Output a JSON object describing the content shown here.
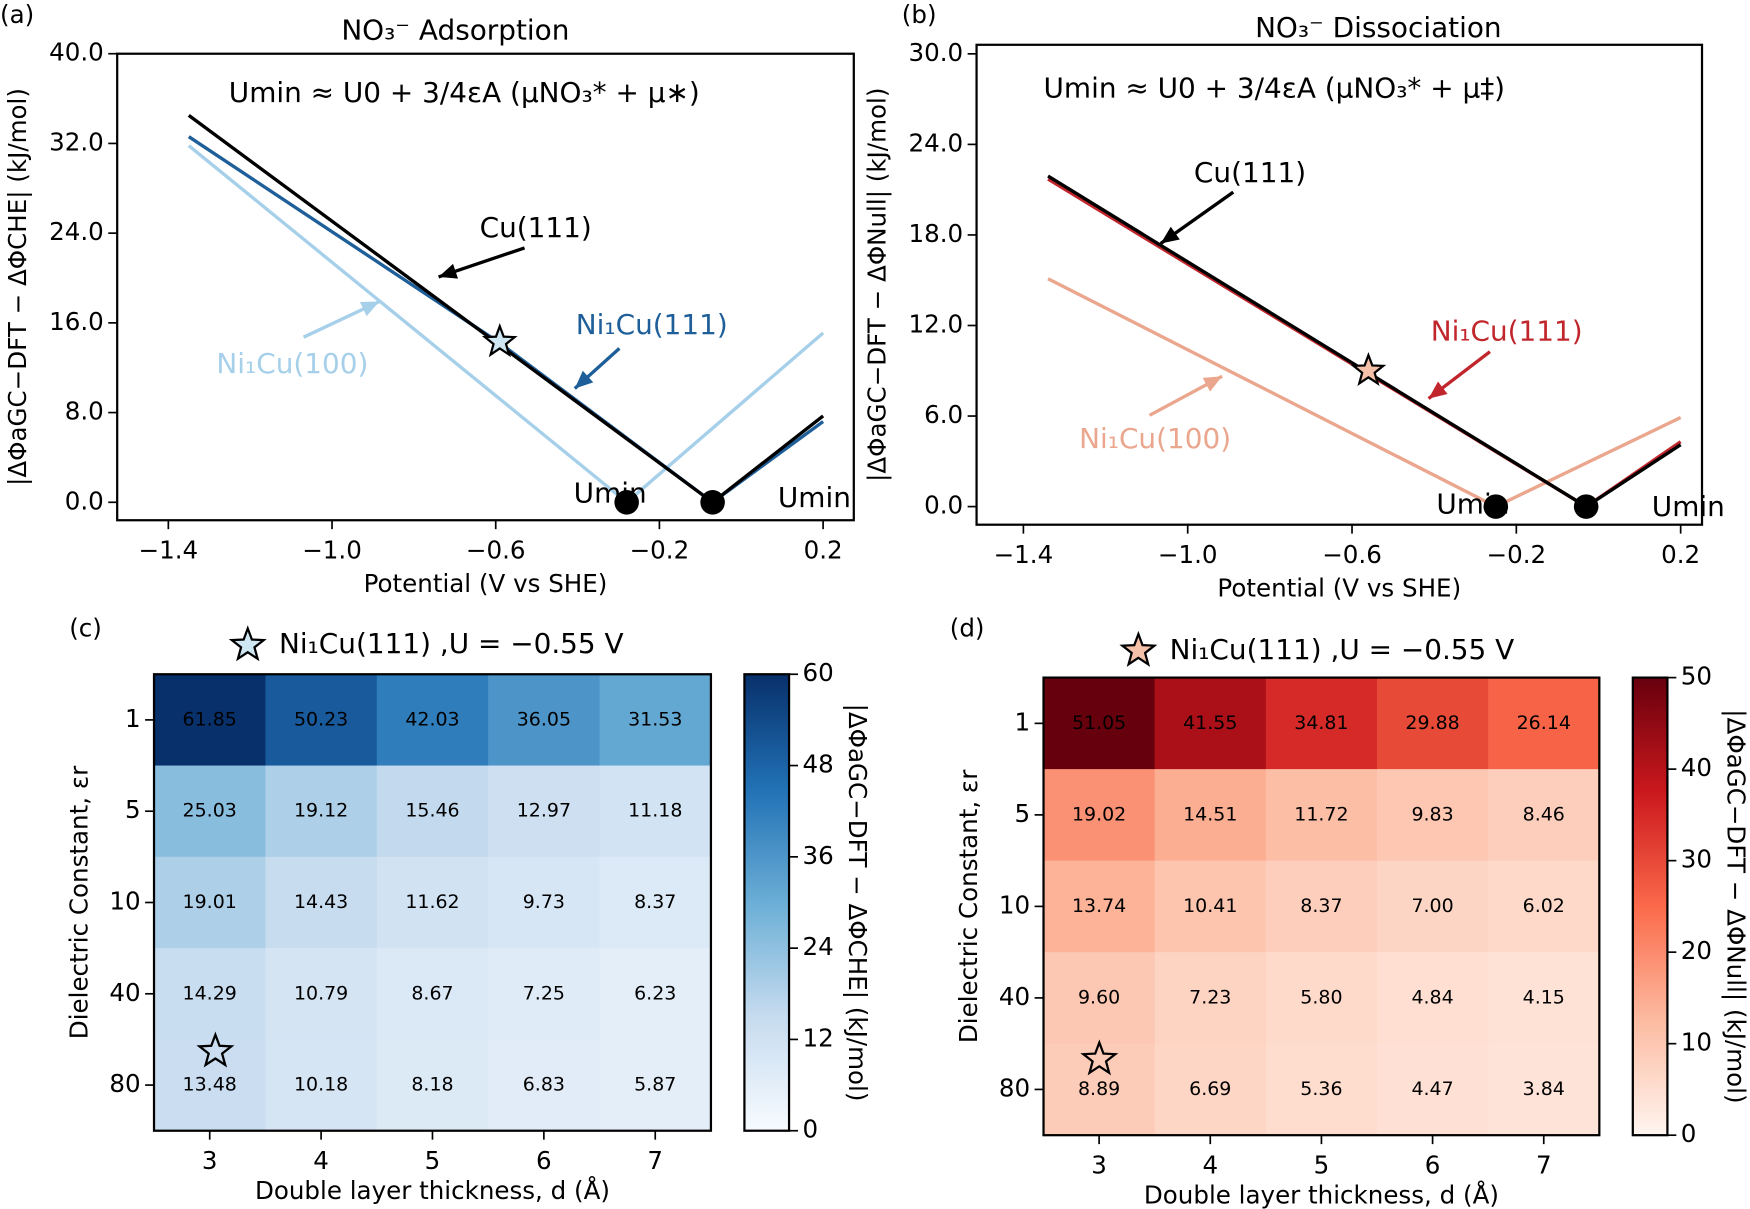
{
  "chart_data": [
    {
      "type": "line",
      "panel": "(a)",
      "title": "NO₃⁻ Adsorption",
      "equation": "Umin ≈ U0 + 3/4εA (μNO₃* + μ∗)",
      "xlabel": "Potential (V vs SHE)",
      "ylabel": "|ΔΦaGC−DFT − ΔΦCHE| (kJ/mol)",
      "xlim": [
        -1.525,
        0.275
      ],
      "ylim": [
        -1.6,
        40
      ],
      "xticks": [
        {
          "value": -1.4,
          "label": "−1.4"
        },
        {
          "value": -1.0,
          "label": "−1.0"
        },
        {
          "value": -0.6,
          "label": "−0.6"
        },
        {
          "value": -0.2,
          "label": "−0.2"
        },
        0.2
      ],
      "yticks": [
        {
          "value": 0,
          "label": "0.0"
        },
        {
          "value": 8,
          "label": "8.0"
        },
        {
          "value": 16,
          "label": "16.0"
        },
        {
          "value": 24,
          "label": "24.0"
        },
        {
          "value": 32,
          "label": "32.0"
        },
        {
          "value": 40,
          "label": "40.0"
        }
      ],
      "series": [
        {
          "name": "Ni₁Cu(100)",
          "color": "#a6d0ea",
          "x": [
            -1.35,
            -0.28,
            0.2
          ],
          "values": [
            31.8,
            0,
            15.1
          ]
        },
        {
          "name": "Ni₁Cu(111)",
          "color": "#1f5f99",
          "x": [
            -1.35,
            -0.59,
            -0.07,
            0.2
          ],
          "values": [
            32.6,
            14.2,
            0,
            7.2
          ]
        },
        {
          "name": "Cu(111)",
          "color": "#000000",
          "x": [
            -1.35,
            -0.07,
            0.2
          ],
          "values": [
            34.5,
            0,
            7.7
          ]
        }
      ],
      "min_points": {
        "label": "Umin",
        "x": [
          -0.28,
          -0.07
        ],
        "y": [
          0,
          0
        ]
      },
      "star": {
        "x": -0.59,
        "y": 14.3,
        "color": "#cfe6f3"
      }
    },
    {
      "type": "line",
      "panel": "(b)",
      "title": "NO₃⁻ Dissociation",
      "equation": "Umin ≈ U0 + 3/4εA (μNO₃* + μ‡)",
      "xlabel": "Potential (V vs SHE)",
      "ylabel": "|ΔΦaGC−DFT − ΔΦNull| (kJ/mol)",
      "xlim": [
        -1.514,
        0.252
      ],
      "ylim": [
        -1.2,
        30.6
      ],
      "xticks": [
        {
          "value": -1.4,
          "label": "−1.4"
        },
        {
          "value": -1.0,
          "label": "−1.0"
        },
        {
          "value": -0.6,
          "label": "−0.6"
        },
        {
          "value": -0.2,
          "label": "−0.2"
        },
        0.2
      ],
      "yticks": [
        {
          "value": 0,
          "label": "0.0"
        },
        {
          "value": 6,
          "label": "6.0"
        },
        {
          "value": 12,
          "label": "12.0"
        },
        {
          "value": 18,
          "label": "18.0"
        },
        {
          "value": 24,
          "label": "24.0"
        },
        {
          "value": 30,
          "label": "30.0"
        }
      ],
      "series": [
        {
          "name": "Ni₁Cu(100)",
          "color": "#eba68e",
          "x": [
            -1.34,
            -0.25,
            0.2
          ],
          "values": [
            15.1,
            0,
            5.9
          ]
        },
        {
          "name": "Ni₁Cu(111)",
          "color": "#c0262c",
          "x": [
            -1.34,
            -0.03,
            0.2
          ],
          "values": [
            21.7,
            0,
            4.3
          ]
        },
        {
          "name": "Cu(111)",
          "color": "#000000",
          "x": [
            -1.34,
            -0.03,
            0.2
          ],
          "values": [
            21.9,
            0,
            4.1
          ]
        }
      ],
      "min_points": {
        "label": "Umin",
        "x": [
          -0.25,
          -0.03
        ],
        "y": [
          0,
          0
        ]
      },
      "star": {
        "x": -0.56,
        "y": 9.0,
        "color": "#f5c1a8"
      }
    },
    {
      "type": "heatmap",
      "panel": "(c)",
      "title": "Ni₁Cu(111) ,U = −0.55 V",
      "xlabel": "Double layer thickness, d (Å)",
      "ylabel": "Dielectric Constant, εr",
      "categories": [
        3,
        4,
        5,
        6,
        7
      ],
      "y_categories": [
        1,
        5,
        10,
        40,
        80
      ],
      "values": [
        [
          61.85,
          50.23,
          42.03,
          36.05,
          31.53
        ],
        [
          25.03,
          19.12,
          15.46,
          12.97,
          11.18
        ],
        [
          19.01,
          14.43,
          11.62,
          9.73,
          8.37
        ],
        [
          14.29,
          10.79,
          8.67,
          7.25,
          6.23
        ],
        [
          13.48,
          10.18,
          8.18,
          6.83,
          5.87
        ]
      ],
      "value_labels": [
        [
          "61.85",
          "50.23",
          "42.03",
          "36.05",
          "31.53"
        ],
        [
          "25.03",
          "19.12",
          "15.46",
          "12.97",
          "11.18"
        ],
        [
          "19.01",
          "14.43",
          "11.62",
          "9.73",
          "8.37"
        ],
        [
          "14.29",
          "10.79",
          "8.67",
          "7.25",
          "6.23"
        ],
        [
          "13.48",
          "10.18",
          "8.18",
          "6.83",
          "5.87"
        ]
      ],
      "zlim": [
        0,
        60
      ],
      "zticks": [
        0,
        12,
        24,
        36,
        48,
        60
      ],
      "zlabel": "|ΔΦaGC−DFT − ΔΦCHE| (kJ/mol)",
      "colors": [
        "#f7fbff",
        "#c6dbef",
        "#6baed6",
        "#2171b5",
        "#08306b"
      ],
      "star_color": "#cfe6f3"
    },
    {
      "type": "heatmap",
      "panel": "(d)",
      "title": "Ni₁Cu(111) ,U = −0.55 V",
      "xlabel": "Double layer thickness, d (Å)",
      "ylabel": "Dielectric Constant, εr",
      "categories": [
        3,
        4,
        5,
        6,
        7
      ],
      "y_categories": [
        1,
        5,
        10,
        40,
        80
      ],
      "values": [
        [
          51.05,
          41.55,
          34.81,
          29.88,
          26.14
        ],
        [
          19.02,
          14.51,
          11.72,
          9.83,
          8.46
        ],
        [
          13.74,
          10.41,
          8.37,
          7,
          6.02
        ],
        [
          9.6,
          7.23,
          5.8,
          4.84,
          4.15
        ],
        [
          8.89,
          6.69,
          5.36,
          4.47,
          3.84
        ]
      ],
      "value_labels": [
        [
          "51.05",
          "41.55",
          "34.81",
          "29.88",
          "26.14"
        ],
        [
          "19.02",
          "14.51",
          "11.72",
          "9.83",
          "8.46"
        ],
        [
          "13.74",
          "10.41",
          "8.37",
          "7.00",
          "6.02"
        ],
        [
          "9.60",
          "7.23",
          "5.80",
          "4.84",
          "4.15"
        ],
        [
          "8.89",
          "6.69",
          "5.36",
          "4.47",
          "3.84"
        ]
      ],
      "zlim": [
        0,
        50
      ],
      "zticks": [
        0,
        10,
        20,
        30,
        40,
        50
      ],
      "zlabel": "|ΔΦaGC−DFT − ΔΦNull| (kJ/mol)",
      "colors": [
        "#fff5f0",
        "#fcbba1",
        "#fb6a4a",
        "#cb181d",
        "#67000d"
      ],
      "star_color": "#f5c1a8"
    }
  ]
}
